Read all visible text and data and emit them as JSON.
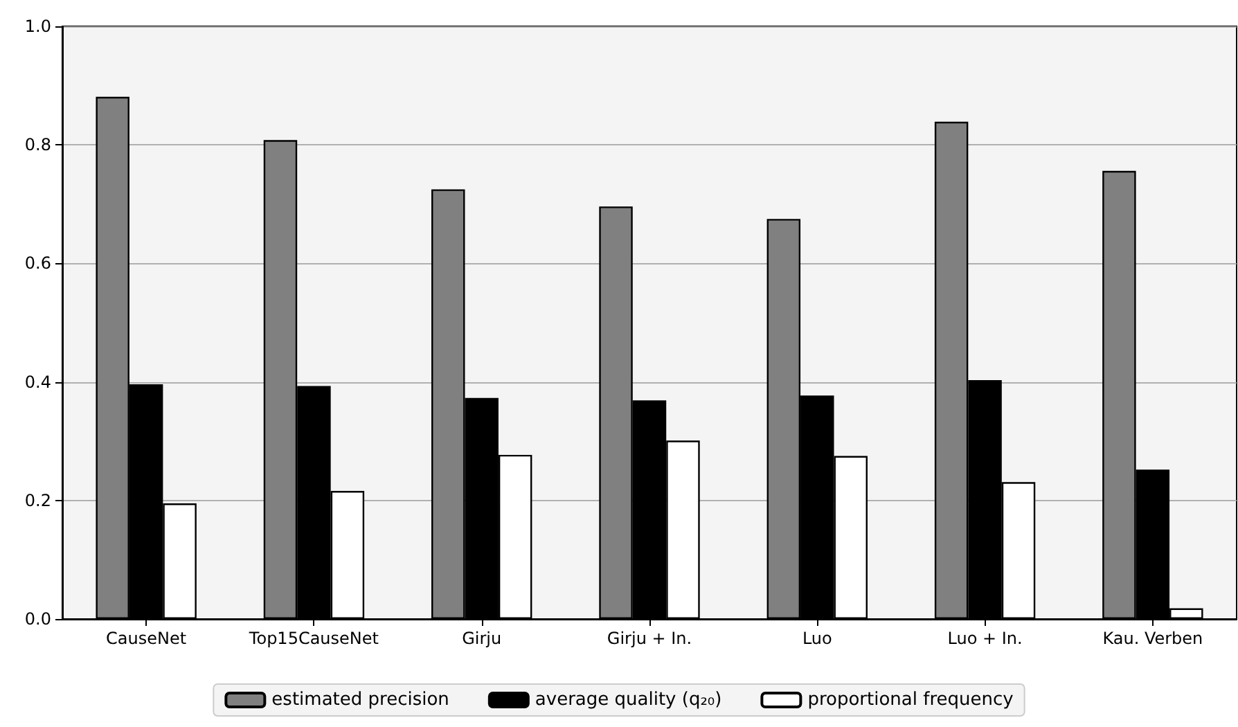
{
  "chart_data": {
    "type": "bar",
    "categories": [
      "CauseNet",
      "Top15CauseNet",
      "Girju",
      "Girju + In.",
      "Luo",
      "Luo + In.",
      "Kau. Verben"
    ],
    "series": [
      {
        "name": "estimated precision",
        "color": "#808080",
        "values": [
          0.881,
          0.808,
          0.725,
          0.696,
          0.675,
          0.839,
          0.756
        ]
      },
      {
        "name": "average quality (q₂₀)",
        "color": "#000000",
        "values": [
          0.396,
          0.393,
          0.373,
          0.369,
          0.377,
          0.403,
          0.252
        ]
      },
      {
        "name": "proportional frequency",
        "color": "#ffffff",
        "values": [
          0.195,
          0.216,
          0.277,
          0.301,
          0.275,
          0.231,
          0.018
        ]
      }
    ],
    "ylim": [
      0,
      1.0
    ],
    "yticks": [
      {
        "value": 0,
        "label": "0.0"
      },
      {
        "value": 0.2,
        "label": "0.2"
      },
      {
        "value": 0.4,
        "label": "0.4"
      },
      {
        "value": 0.6,
        "label": "0.6"
      },
      {
        "value": 0.8,
        "label": "0.8"
      },
      {
        "value": 1.0,
        "label": "1.0"
      }
    ],
    "grid": "y",
    "legend": "bottom"
  }
}
